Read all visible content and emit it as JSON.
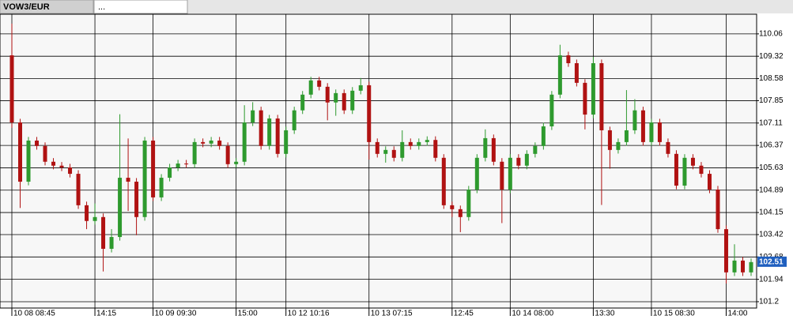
{
  "tabs": [
    "VOW3/EUR",
    "..."
  ],
  "chart_data": {
    "type": "candlestick",
    "up_color": "#2e9a2e",
    "down_color": "#b01212",
    "grid": true,
    "xlim": [
      0,
      89
    ],
    "ylim": [
      100.99,
      110.71
    ],
    "yticks": [
      110.06,
      109.32,
      108.58,
      107.85,
      107.11,
      106.37,
      105.63,
      104.89,
      104.15,
      103.42,
      102.68,
      101.94,
      101.2
    ],
    "xticks": [
      {
        "value": 0,
        "label": "10 08 08:45"
      },
      {
        "value": 10,
        "label": "14:15"
      },
      {
        "value": 17,
        "label": "10 09 09:30"
      },
      {
        "value": 27,
        "label": "15:00"
      },
      {
        "value": 33,
        "label": "10 12 10:16"
      },
      {
        "value": 43,
        "label": "10 13 07:15"
      },
      {
        "value": 53,
        "label": "12:45"
      },
      {
        "value": 60,
        "label": "10 14 08:00"
      },
      {
        "value": 70,
        "label": "13:30"
      },
      {
        "value": 77,
        "label": "10 15 08:30"
      },
      {
        "value": 86,
        "label": "14:00"
      }
    ],
    "last_price": 102.51,
    "open": [
      109.35,
      107.13,
      105.17,
      106.53,
      106.35,
      105.83,
      105.7,
      105.64,
      105.43,
      104.39,
      103.87,
      104.0,
      102.95,
      103.34,
      105.3,
      105.17,
      104.0,
      106.53,
      104.65,
      105.3,
      105.64,
      105.77,
      105.75,
      106.48,
      106.43,
      106.53,
      106.35,
      105.75,
      105.83,
      107.13,
      107.53,
      106.35,
      107.26,
      106.09,
      106.87,
      107.53,
      108.05,
      108.52,
      108.31,
      107.79,
      108.1,
      107.53,
      108.18,
      108.36,
      106.48,
      106.09,
      106.22,
      105.96,
      106.48,
      106.35,
      106.48,
      106.55,
      105.96,
      104.39,
      104.26,
      104.0,
      104.91,
      105.96,
      106.61,
      105.83,
      104.91,
      105.96,
      105.7,
      106.09,
      106.35,
      107.0,
      108.05,
      109.35,
      109.09,
      108.44,
      107.39,
      109.09,
      106.87,
      106.22,
      106.48,
      106.87,
      107.53,
      106.48,
      107.13,
      106.48,
      106.09,
      105.04,
      105.96,
      105.7,
      105.43,
      104.91,
      103.6,
      102.17,
      102.56,
      102.17
    ],
    "high": [
      110.4,
      107.25,
      106.65,
      106.65,
      106.47,
      105.95,
      105.82,
      105.76,
      105.55,
      104.51,
      104.45,
      104.12,
      103.6,
      107.4,
      106.6,
      105.29,
      106.65,
      106.65,
      105.42,
      105.76,
      105.89,
      105.89,
      106.6,
      106.6,
      106.65,
      106.65,
      106.47,
      105.95,
      107.7,
      107.8,
      107.65,
      107.38,
      107.38,
      106.99,
      107.65,
      108.17,
      108.64,
      108.64,
      108.43,
      108.22,
      108.22,
      108.3,
      108.6,
      108.48,
      106.6,
      106.34,
      106.34,
      106.87,
      106.6,
      106.6,
      106.67,
      106.67,
      106.08,
      104.51,
      104.38,
      105.03,
      106.08,
      106.9,
      106.73,
      105.95,
      106.08,
      106.08,
      106.21,
      106.47,
      107.12,
      108.17,
      109.7,
      109.47,
      109.21,
      108.56,
      109.3,
      109.21,
      106.99,
      106.6,
      108.2,
      107.9,
      107.65,
      107.25,
      107.25,
      106.6,
      106.21,
      106.08,
      106.08,
      105.82,
      105.55,
      105.03,
      103.72,
      103.1,
      102.68,
      102.63
    ],
    "low": [
      106.95,
      104.3,
      105.05,
      106.23,
      105.71,
      105.58,
      105.52,
      105.31,
      104.27,
      103.6,
      103.75,
      102.2,
      102.83,
      103.22,
      104.2,
      103.4,
      103.88,
      104.53,
      104.53,
      105.18,
      105.52,
      105.63,
      105.63,
      106.31,
      106.31,
      106.23,
      105.63,
      105.63,
      105.71,
      107.01,
      106.23,
      106.23,
      105.97,
      105.97,
      106.75,
      107.41,
      107.93,
      108.19,
      107.2,
      107.35,
      107.41,
      107.41,
      108.06,
      105.9,
      105.97,
      105.8,
      105.84,
      105.84,
      106.23,
      106.23,
      106.36,
      105.84,
      104.27,
      104.0,
      103.5,
      103.88,
      104.79,
      105.84,
      105.71,
      103.8,
      104.79,
      105.58,
      105.58,
      105.97,
      106.23,
      106.88,
      107.93,
      108.97,
      108.32,
      106.9,
      107.27,
      104.4,
      105.6,
      106.1,
      106.36,
      106.75,
      106.36,
      106.36,
      106.36,
      105.97,
      104.92,
      104.92,
      105.58,
      105.31,
      104.79,
      103.48,
      101.8,
      102.05,
      102.05,
      102.05
    ],
    "close": [
      107.13,
      105.17,
      106.53,
      106.35,
      105.83,
      105.7,
      105.64,
      105.43,
      104.39,
      103.87,
      104.0,
      102.95,
      103.34,
      105.3,
      105.17,
      104.0,
      106.53,
      104.65,
      105.3,
      105.64,
      105.77,
      105.75,
      106.48,
      106.43,
      106.53,
      106.35,
      105.75,
      105.83,
      107.13,
      107.53,
      106.35,
      107.26,
      106.09,
      106.87,
      107.53,
      108.05,
      108.52,
      108.31,
      107.79,
      108.1,
      107.53,
      108.18,
      108.36,
      106.48,
      106.09,
      106.22,
      105.96,
      106.48,
      106.35,
      106.48,
      106.55,
      105.96,
      104.39,
      104.26,
      104.0,
      104.91,
      105.96,
      106.61,
      105.83,
      104.91,
      105.96,
      105.7,
      106.09,
      106.35,
      107.0,
      108.05,
      109.35,
      109.09,
      108.44,
      107.39,
      109.09,
      106.87,
      106.22,
      106.48,
      106.87,
      107.53,
      106.48,
      107.13,
      106.48,
      106.09,
      105.04,
      105.96,
      105.7,
      105.43,
      104.91,
      103.6,
      102.17,
      102.56,
      102.17,
      102.51
    ]
  }
}
